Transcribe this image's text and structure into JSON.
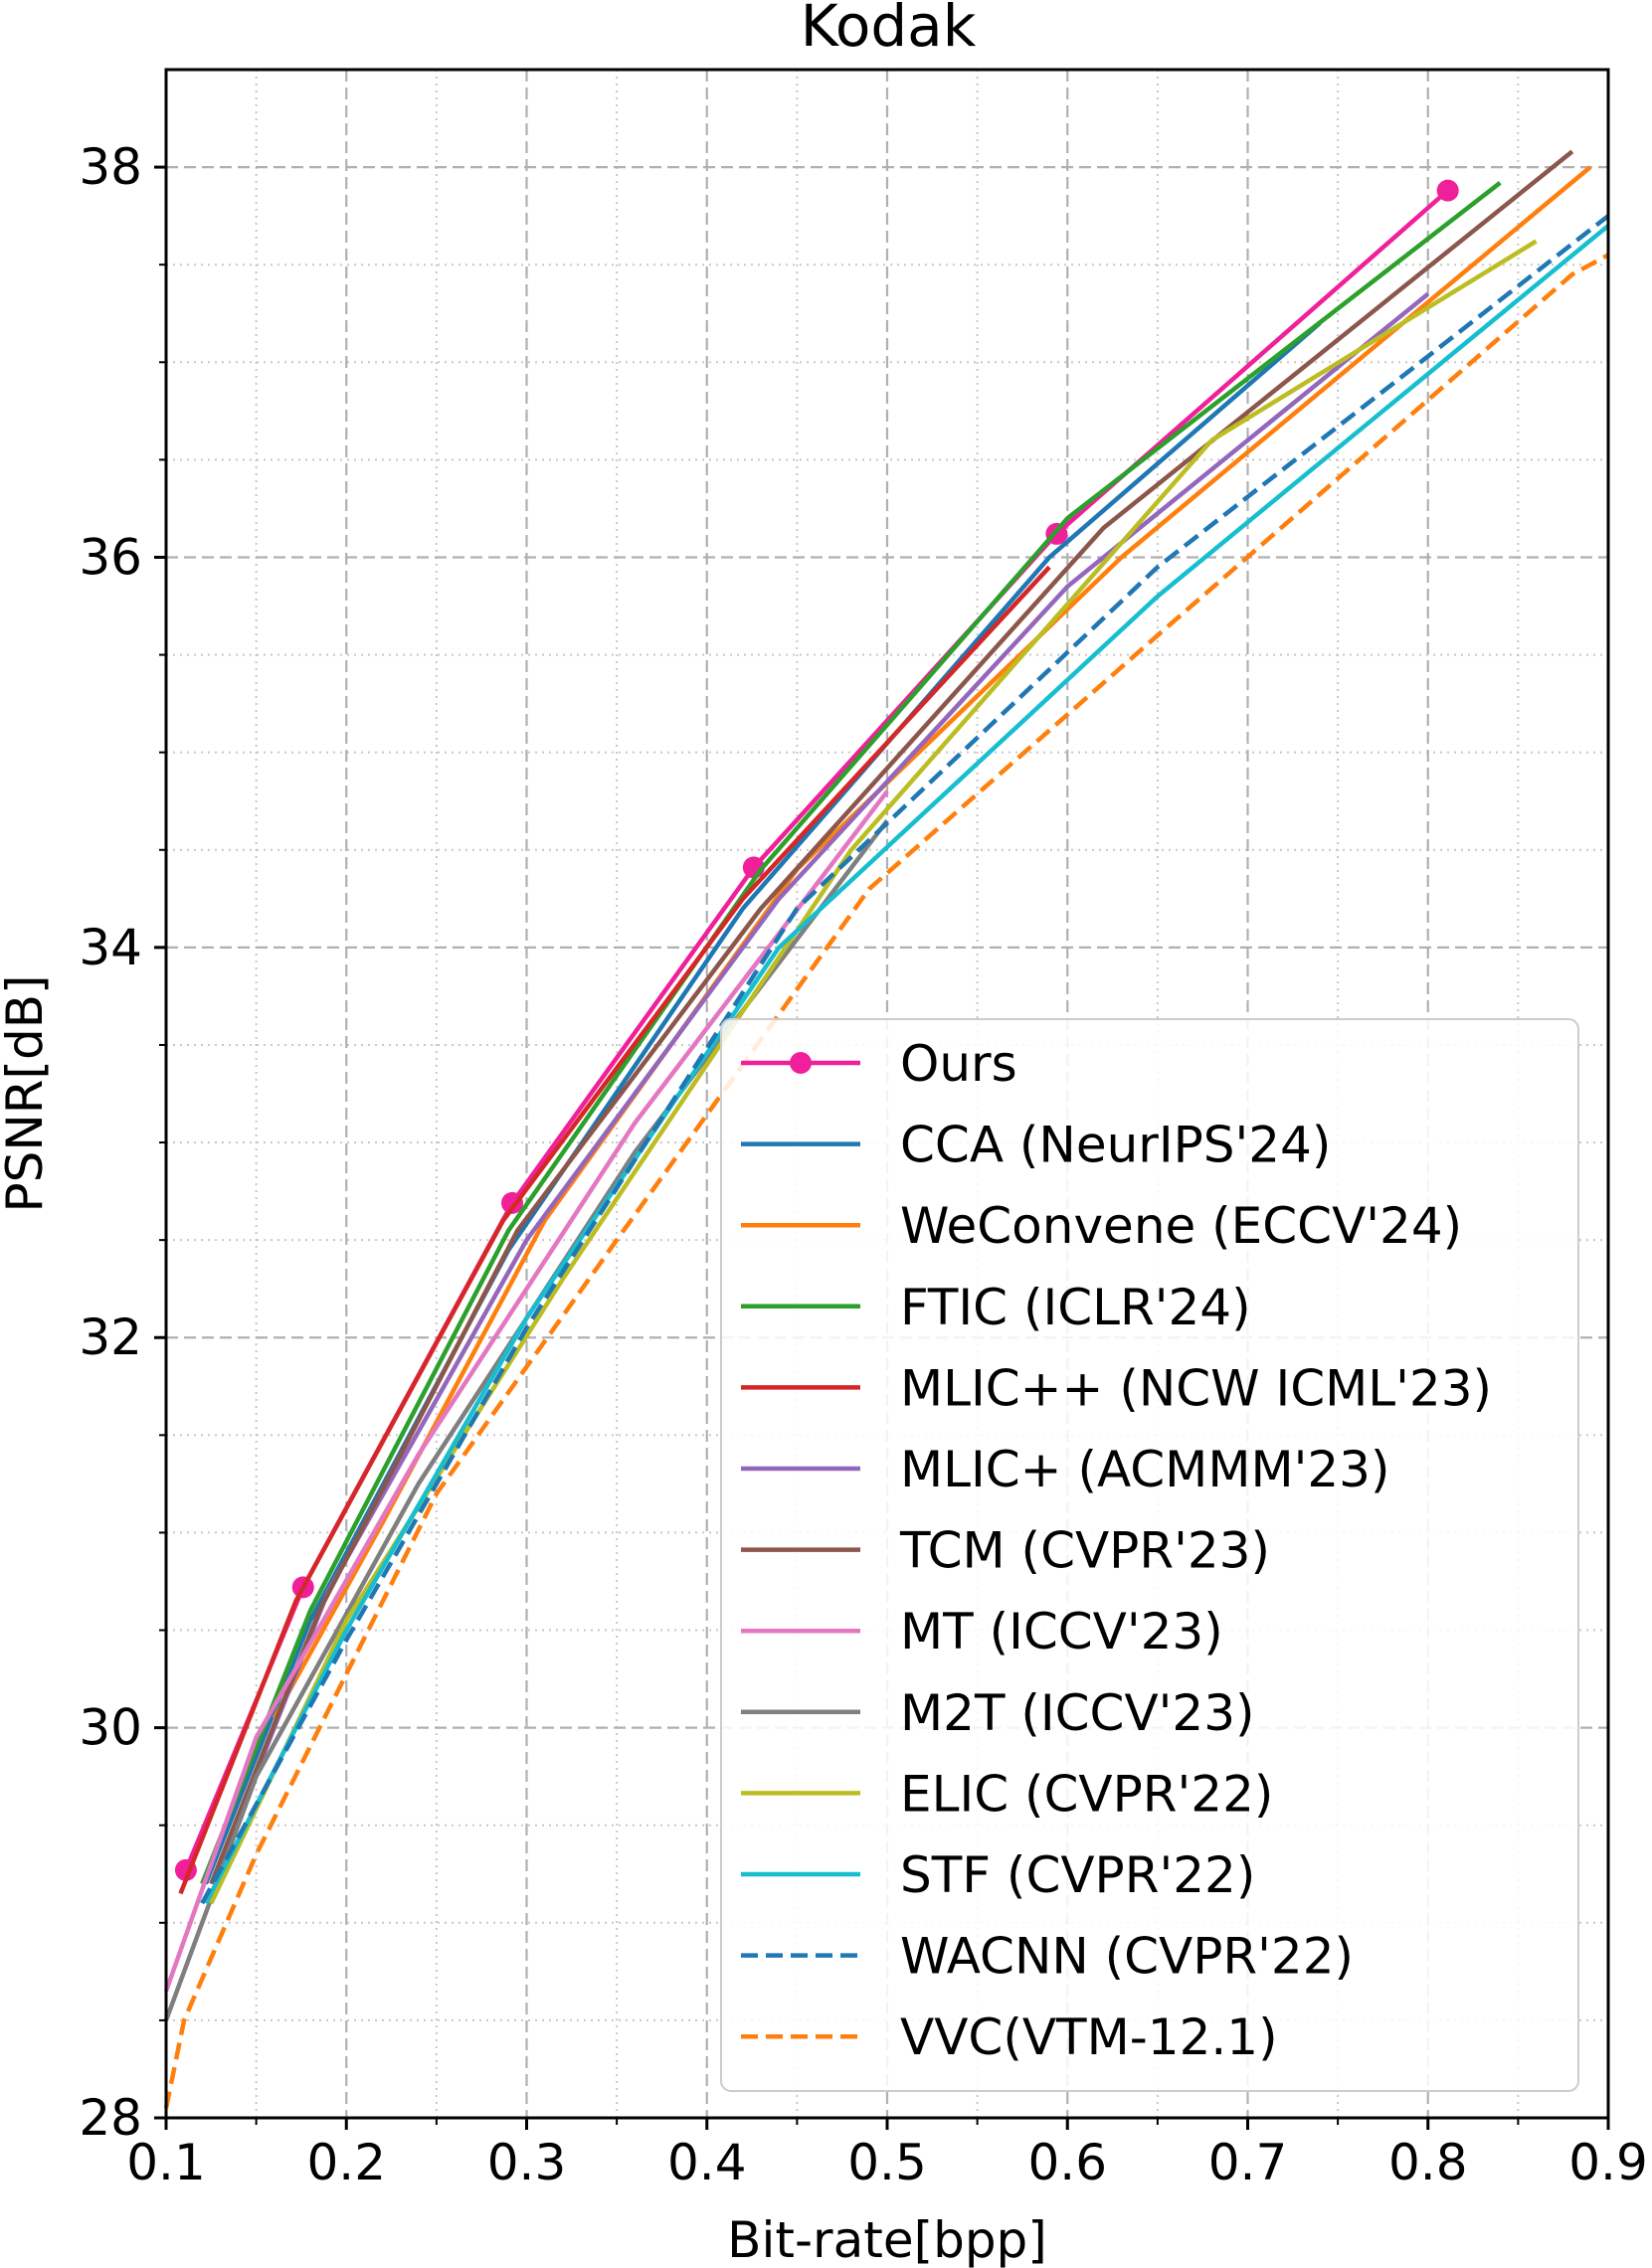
{
  "chart_data": {
    "type": "line",
    "title": "Kodak",
    "xlabel": "Bit-rate[bpp]",
    "ylabel": "PSNR[dB]",
    "xlim": [
      0.1,
      0.9
    ],
    "ylim": [
      28,
      38.5
    ],
    "xticks": [
      0.1,
      0.2,
      0.3,
      0.4,
      0.5,
      0.6,
      0.7,
      0.8,
      0.9
    ],
    "xtick_labels": [
      "0.1",
      "0.2",
      "0.3",
      "0.4",
      "0.5",
      "0.6",
      "0.7",
      "0.8",
      "0.9"
    ],
    "yticks": [
      28,
      30,
      32,
      34,
      36,
      38
    ],
    "ytick_labels": [
      "28",
      "30",
      "32",
      "34",
      "36",
      "38"
    ],
    "xminor": [
      0.15,
      0.25,
      0.35,
      0.45,
      0.55,
      0.65,
      0.75,
      0.85
    ],
    "yminor": [
      28.5,
      29,
      29.5,
      30.5,
      31,
      31.5,
      32.5,
      33,
      33.5,
      34.5,
      35,
      35.5,
      36.5,
      37,
      37.5
    ],
    "grid": true,
    "legend_position": "lower-right",
    "series": [
      {
        "name": "Ours",
        "color": "#f0209a",
        "style": "solid",
        "marker": "circle",
        "x": [
          0.111,
          0.176,
          0.292,
          0.426,
          0.594,
          0.811
        ],
        "y": [
          29.27,
          30.72,
          32.69,
          34.41,
          36.12,
          37.88
        ]
      },
      {
        "name": "CCA (NeurIPS'24)",
        "color": "#1f77b4",
        "style": "solid",
        "x": [
          0.122,
          0.18,
          0.29,
          0.42,
          0.59,
          0.74
        ],
        "y": [
          29.2,
          30.55,
          32.45,
          34.2,
          36.0,
          37.2
        ]
      },
      {
        "name": "WeConvene (ECCV'24)",
        "color": "#ff7f0e",
        "style": "solid",
        "x": [
          0.16,
          0.22,
          0.31,
          0.45,
          0.63,
          0.89
        ],
        "y": [
          30.05,
          31.05,
          32.6,
          34.4,
          36.0,
          38.0
        ]
      },
      {
        "name": "FTIC (ICLR'24)",
        "color": "#2ca02c",
        "style": "solid",
        "x": [
          0.12,
          0.18,
          0.29,
          0.43,
          0.6,
          0.84
        ],
        "y": [
          29.2,
          30.6,
          32.55,
          34.4,
          36.2,
          37.92
        ]
      },
      {
        "name": "MLIC++ (NCW ICML'23)",
        "color": "#d62728",
        "style": "solid",
        "x": [
          0.108,
          0.172,
          0.287,
          0.42,
          0.59
        ],
        "y": [
          29.15,
          30.65,
          32.6,
          34.25,
          35.95
        ]
      },
      {
        "name": "MLIC+ (ACMMM'23)",
        "color": "#9467bd",
        "style": "solid",
        "x": [
          0.13,
          0.19,
          0.3,
          0.44,
          0.6,
          0.8
        ],
        "y": [
          29.3,
          30.7,
          32.5,
          34.25,
          35.85,
          37.35
        ]
      },
      {
        "name": "TCM (CVPR'23)",
        "color": "#8c564b",
        "style": "solid",
        "x": [
          0.125,
          0.185,
          0.295,
          0.43,
          0.62,
          0.88
        ],
        "y": [
          29.2,
          30.6,
          32.55,
          34.2,
          36.15,
          38.08
        ]
      },
      {
        "name": "MT (ICCV'23)",
        "color": "#e377c2",
        "style": "solid",
        "x": [
          0.1,
          0.15,
          0.24,
          0.36,
          0.5
        ],
        "y": [
          28.65,
          29.95,
          31.4,
          33.1,
          34.8
        ]
      },
      {
        "name": "M2T (ICCV'23)",
        "color": "#7f7f7f",
        "style": "solid",
        "x": [
          0.1,
          0.15,
          0.24,
          0.36,
          0.5
        ],
        "y": [
          28.5,
          29.75,
          31.25,
          32.95,
          34.65
        ]
      },
      {
        "name": "ELIC (CVPR'22)",
        "color": "#bcbd22",
        "style": "solid",
        "x": [
          0.125,
          0.2,
          0.32,
          0.48,
          0.68,
          0.86
        ],
        "y": [
          29.1,
          30.55,
          32.3,
          34.5,
          36.6,
          37.62
        ]
      },
      {
        "name": "STF (CVPR'22)",
        "color": "#17becf",
        "style": "solid",
        "x": [
          0.122,
          0.2,
          0.3,
          0.44,
          0.65,
          0.9
        ],
        "y": [
          29.1,
          30.5,
          32.1,
          34.0,
          35.8,
          37.7
        ]
      },
      {
        "name": "WACNN (CVPR'22)",
        "color": "#1f77b4",
        "style": "dashed",
        "x": [
          0.12,
          0.2,
          0.3,
          0.45,
          0.65,
          0.9
        ],
        "y": [
          29.1,
          30.45,
          32.05,
          34.2,
          35.95,
          37.75
        ]
      },
      {
        "name": "VVC(VTM-12.1)",
        "color": "#ff7f0e",
        "style": "dashed",
        "x": [
          0.1,
          0.11,
          0.15,
          0.25,
          0.35,
          0.49,
          0.65,
          0.88,
          0.9
        ],
        "y": [
          28.05,
          28.5,
          29.35,
          31.2,
          32.5,
          34.3,
          35.6,
          37.45,
          37.55
        ]
      }
    ]
  }
}
